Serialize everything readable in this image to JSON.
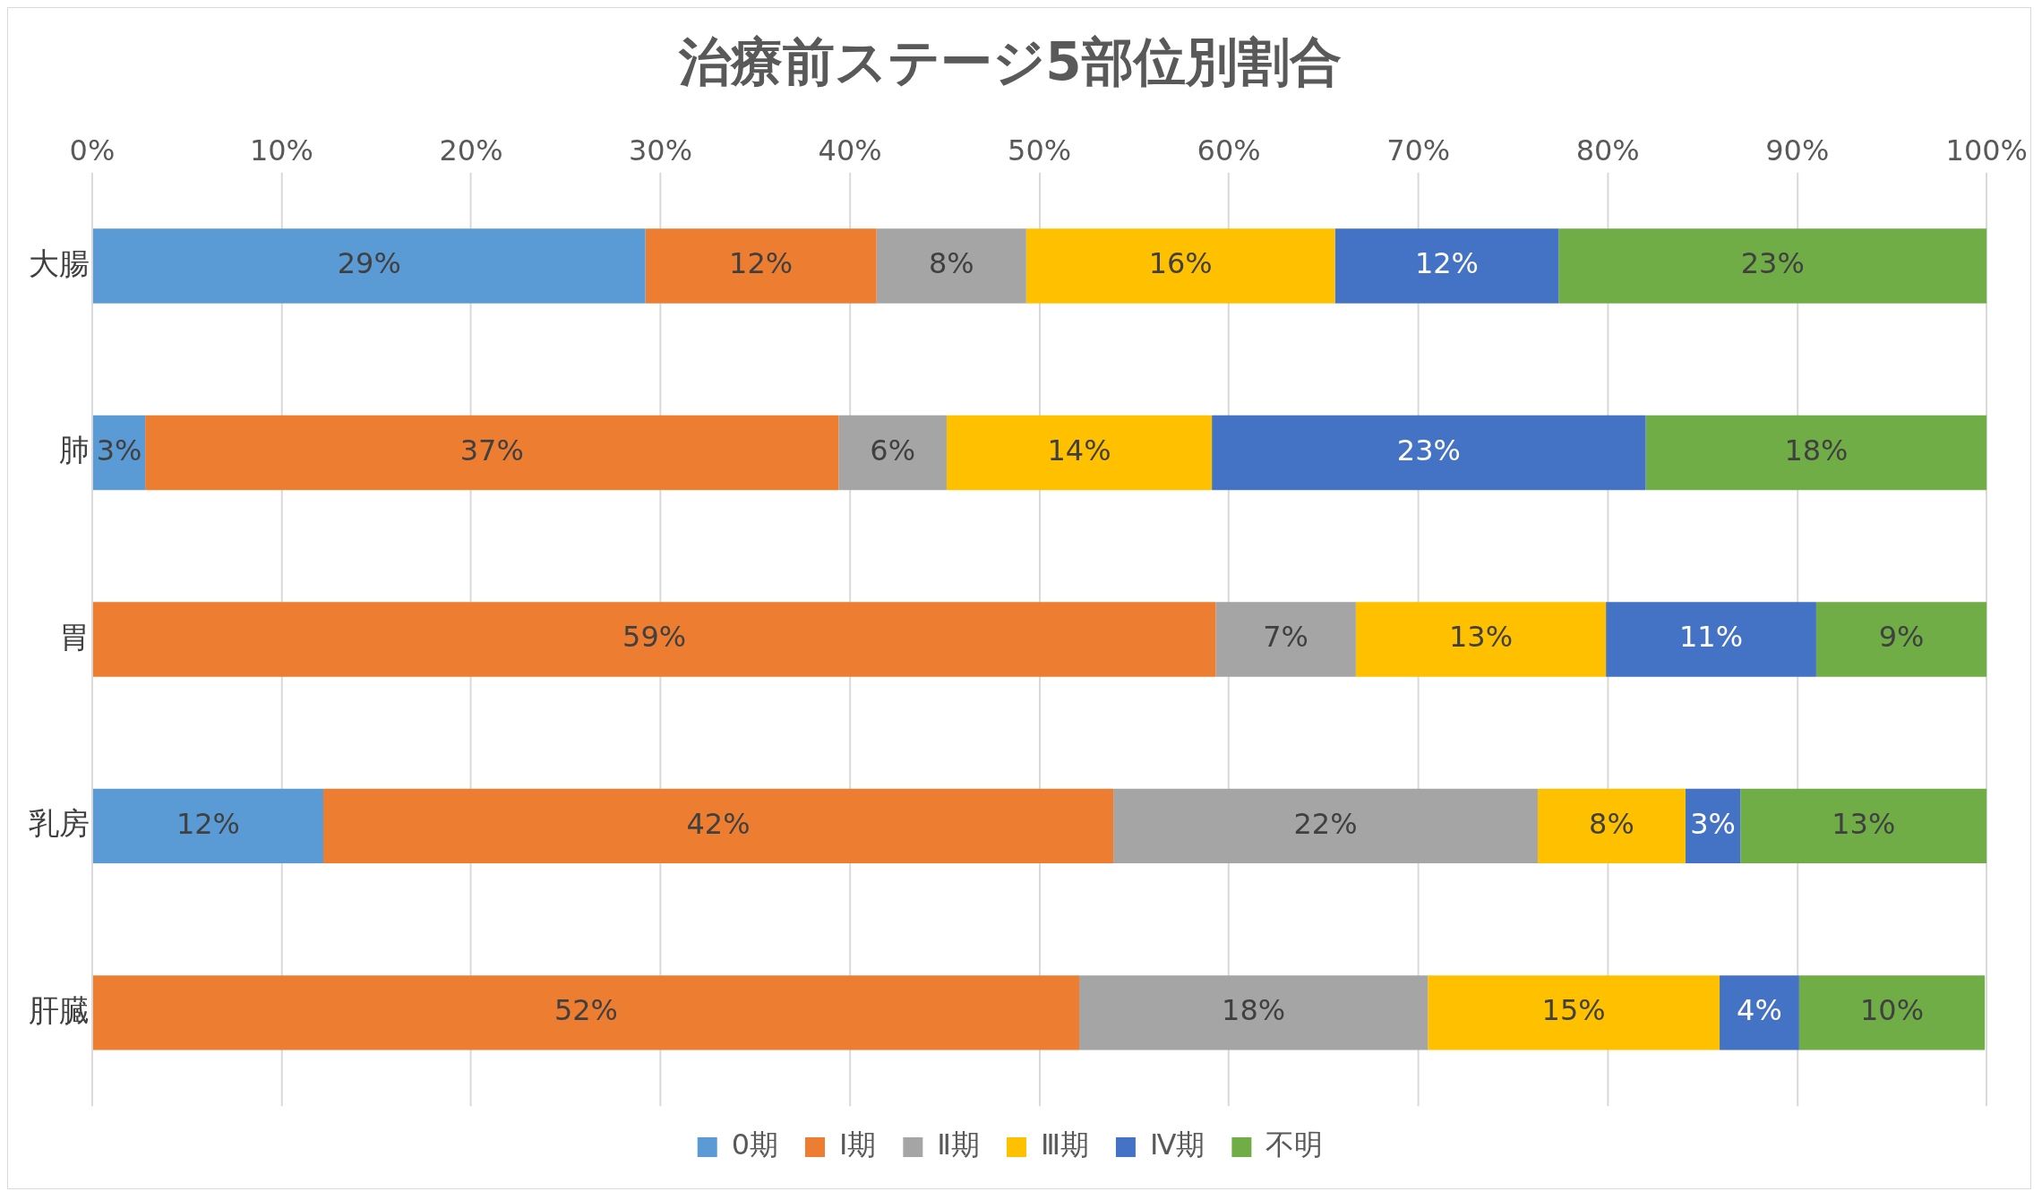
{
  "chart_data": {
    "type": "bar",
    "title": "治療前ステージ5部位別割合",
    "orientation": "horizontal",
    "stacked": true,
    "categories": [
      "大腸",
      "肺",
      "胃",
      "乳房",
      "肝臓"
    ],
    "series": [
      {
        "name": "0期",
        "color": "#5b9bd5",
        "values": [
          29.2,
          2.8,
          null,
          12.2,
          null
        ],
        "value_labels": [
          "29%",
          "3%",
          null,
          "12%",
          null
        ]
      },
      {
        "name": "Ⅰ期",
        "color": "#ed7d31",
        "values": [
          12.2,
          36.6,
          59.3,
          41.7,
          52.1
        ],
        "value_labels": [
          "12%",
          "37%",
          "59%",
          "42%",
          "52%"
        ]
      },
      {
        "name": "Ⅱ期",
        "color": "#a5a5a5",
        "values": [
          7.9,
          5.7,
          7.4,
          22.4,
          18.4
        ],
        "value_labels": [
          "8%",
          "6%",
          "7%",
          "22%",
          "18%"
        ]
      },
      {
        "name": "Ⅲ期",
        "color": "#ffc000",
        "values": [
          16.3,
          14.0,
          13.2,
          7.8,
          15.4
        ],
        "value_labels": [
          "16%",
          "14%",
          "13%",
          "8%",
          "15%"
        ]
      },
      {
        "name": "Ⅳ期",
        "color": "#4472c4",
        "values": [
          11.8,
          22.9,
          11.1,
          2.9,
          4.2
        ],
        "value_labels": [
          "12%",
          "23%",
          "11%",
          "3%",
          "4%"
        ]
      },
      {
        "name": "不明",
        "color": "#70ad47",
        "values": [
          22.6,
          18.0,
          9.0,
          13.0,
          9.8
        ],
        "value_labels": [
          "23%",
          "18%",
          "9%",
          "13%",
          "10%"
        ]
      }
    ],
    "xlim": [
      0,
      100
    ],
    "xticks": [
      {
        "value": 0,
        "label": "0%"
      },
      {
        "value": 10,
        "label": "10%"
      },
      {
        "value": 20,
        "label": "20%"
      },
      {
        "value": 30,
        "label": "30%"
      },
      {
        "value": 40,
        "label": "40%"
      },
      {
        "value": 50,
        "label": "50%"
      },
      {
        "value": 60,
        "label": "60%"
      },
      {
        "value": 70,
        "label": "70%"
      },
      {
        "value": 80,
        "label": "80%"
      },
      {
        "value": 90,
        "label": "90%"
      },
      {
        "value": 100,
        "label": "100%"
      }
    ],
    "grid": "x",
    "legend": "bottom"
  }
}
